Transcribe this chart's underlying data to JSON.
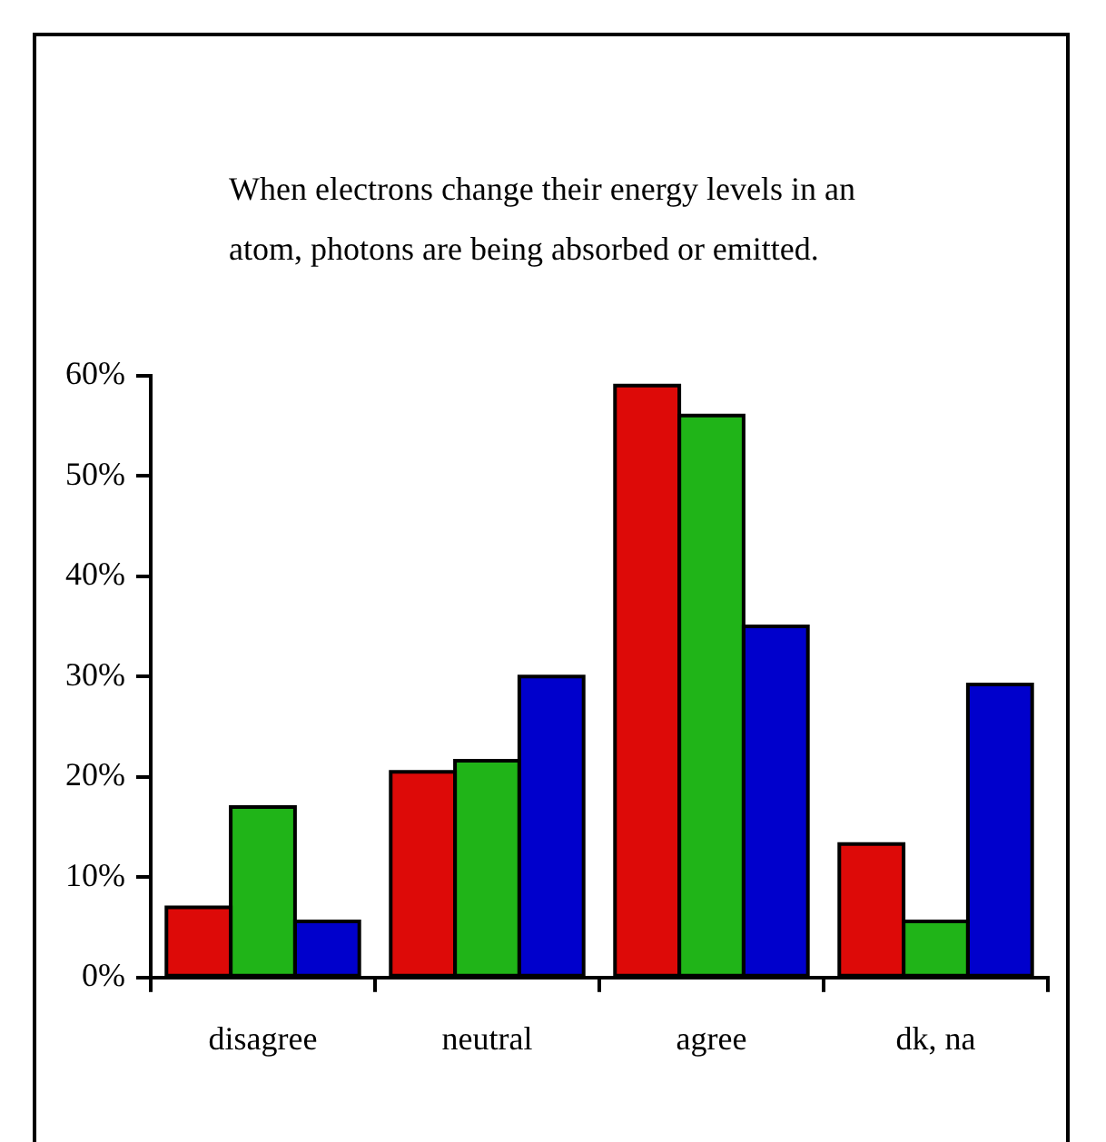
{
  "chart_data": {
    "type": "bar",
    "title": "When electrons change their energy levels in an atom, photons are being absorbed or emitted.",
    "categories": [
      "disagree",
      "neutral",
      "agree",
      "dk, na"
    ],
    "series": [
      {
        "color": "#dd0a08",
        "values": [
          7,
          20.5,
          59,
          13.3
        ]
      },
      {
        "color": "#20b418",
        "values": [
          17,
          21.6,
          56,
          5.6
        ]
      },
      {
        "color": "#0000cc",
        "values": [
          5.6,
          30,
          35,
          29.2
        ]
      }
    ],
    "ylim": [
      0,
      60
    ],
    "yticks": [
      {
        "value": 0,
        "label": "0%"
      },
      {
        "value": 10,
        "label": "10%"
      },
      {
        "value": 20,
        "label": "20%"
      },
      {
        "value": 30,
        "label": "30%"
      },
      {
        "value": 40,
        "label": "40%"
      },
      {
        "value": 50,
        "label": "50%"
      },
      {
        "value": 60,
        "label": "60%"
      }
    ]
  }
}
